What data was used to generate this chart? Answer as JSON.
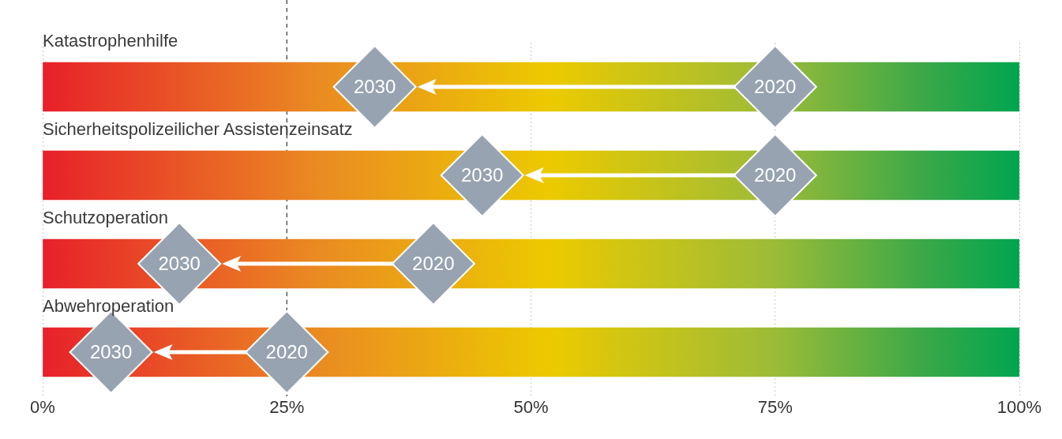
{
  "chart_data": {
    "type": "scatter",
    "orientation": "horizontal",
    "categories": [
      "Katastrophenhilfe",
      "Sicherheitspolizeilicher Assistenzeinsatz",
      "Schutzoperation",
      "Abwehroperation"
    ],
    "series": [
      {
        "type": "bar",
        "color": "#ecca00",
        "values": [
          100,
          100,
          100,
          100
        ]
      },
      {
        "name": "2020",
        "color": "#97a3b0",
        "values": [
          75,
          75,
          40,
          25
        ]
      },
      {
        "name": "2030",
        "color": "#97a3b0",
        "values": [
          34,
          45,
          14,
          7
        ]
      }
    ],
    "xlim": [
      0,
      100
    ],
    "xticks": [
      {
        "value": 0,
        "label": "0%"
      },
      {
        "value": 25,
        "label": "25%"
      },
      {
        "value": 50,
        "label": "50%"
      },
      {
        "value": 75,
        "label": "75%"
      },
      {
        "value": 100,
        "label": "100%"
      }
    ],
    "grid": "x",
    "ref_lines": [
      {
        "axis": "x",
        "value": 25,
        "color": "#333333",
        "line_style": "dashed"
      }
    ],
    "marker": "diamond",
    "legend": false
  }
}
